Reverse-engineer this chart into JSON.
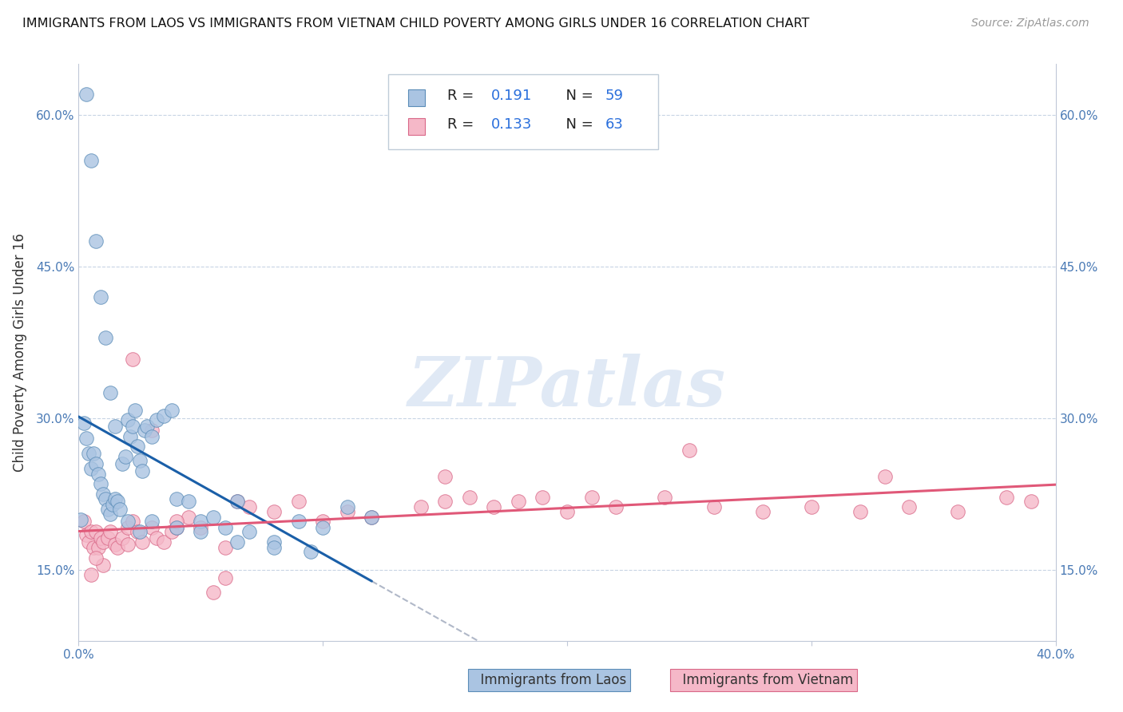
{
  "title": "IMMIGRANTS FROM LAOS VS IMMIGRANTS FROM VIETNAM CHILD POVERTY AMONG GIRLS UNDER 16 CORRELATION CHART",
  "source": "Source: ZipAtlas.com",
  "ylabel": "Child Poverty Among Girls Under 16",
  "xlim": [
    0.0,
    0.4
  ],
  "ylim": [
    0.08,
    0.65
  ],
  "yticks": [
    0.15,
    0.3,
    0.45,
    0.6
  ],
  "yticklabels": [
    "15.0%",
    "30.0%",
    "45.0%",
    "60.0%"
  ],
  "xtick_left": "0.0%",
  "xtick_right": "40.0%",
  "laos_R": 0.191,
  "laos_N": 59,
  "vietnam_R": 0.133,
  "vietnam_N": 63,
  "laos_color": "#aac4e2",
  "laos_edge": "#5b8db8",
  "vietnam_color": "#f5b8c8",
  "vietnam_edge": "#d96888",
  "trend_laos_color": "#1a5fa8",
  "trend_vietnam_color": "#e05878",
  "dashed_line_color": "#b0b8c8",
  "watermark": "ZIPatlas",
  "background_color": "#ffffff",
  "grid_color": "#c8d4e4",
  "laos_x": [
    0.001,
    0.002,
    0.003,
    0.004,
    0.005,
    0.006,
    0.007,
    0.008,
    0.009,
    0.01,
    0.011,
    0.012,
    0.013,
    0.014,
    0.015,
    0.016,
    0.017,
    0.018,
    0.019,
    0.02,
    0.021,
    0.022,
    0.023,
    0.024,
    0.025,
    0.026,
    0.027,
    0.028,
    0.03,
    0.032,
    0.035,
    0.038,
    0.04,
    0.045,
    0.05,
    0.055,
    0.06,
    0.065,
    0.07,
    0.08,
    0.09,
    0.1,
    0.11,
    0.12,
    0.003,
    0.005,
    0.007,
    0.009,
    0.011,
    0.013,
    0.015,
    0.02,
    0.025,
    0.03,
    0.04,
    0.05,
    0.065,
    0.08,
    0.095
  ],
  "laos_y": [
    0.2,
    0.295,
    0.28,
    0.265,
    0.25,
    0.265,
    0.255,
    0.245,
    0.235,
    0.225,
    0.22,
    0.21,
    0.205,
    0.215,
    0.22,
    0.218,
    0.21,
    0.255,
    0.262,
    0.298,
    0.282,
    0.292,
    0.308,
    0.272,
    0.258,
    0.248,
    0.288,
    0.292,
    0.282,
    0.298,
    0.302,
    0.308,
    0.22,
    0.218,
    0.198,
    0.202,
    0.192,
    0.218,
    0.188,
    0.178,
    0.198,
    0.192,
    0.212,
    0.202,
    0.62,
    0.555,
    0.475,
    0.42,
    0.38,
    0.325,
    0.292,
    0.198,
    0.188,
    0.198,
    0.192,
    0.188,
    0.178,
    0.172,
    0.168
  ],
  "vietnam_x": [
    0.002,
    0.003,
    0.004,
    0.005,
    0.006,
    0.007,
    0.008,
    0.009,
    0.01,
    0.012,
    0.013,
    0.015,
    0.016,
    0.018,
    0.02,
    0.022,
    0.024,
    0.026,
    0.03,
    0.032,
    0.035,
    0.038,
    0.04,
    0.045,
    0.05,
    0.055,
    0.06,
    0.065,
    0.07,
    0.08,
    0.09,
    0.1,
    0.11,
    0.12,
    0.14,
    0.15,
    0.16,
    0.17,
    0.18,
    0.19,
    0.2,
    0.21,
    0.22,
    0.24,
    0.26,
    0.28,
    0.3,
    0.32,
    0.34,
    0.36,
    0.38,
    0.39,
    0.022,
    0.03,
    0.04,
    0.06,
    0.15,
    0.25,
    0.33,
    0.02,
    0.01,
    0.007,
    0.005
  ],
  "vietnam_y": [
    0.198,
    0.185,
    0.178,
    0.188,
    0.172,
    0.188,
    0.172,
    0.182,
    0.178,
    0.182,
    0.188,
    0.175,
    0.172,
    0.182,
    0.192,
    0.198,
    0.188,
    0.178,
    0.192,
    0.182,
    0.178,
    0.188,
    0.192,
    0.202,
    0.192,
    0.128,
    0.142,
    0.218,
    0.212,
    0.208,
    0.218,
    0.198,
    0.208,
    0.202,
    0.212,
    0.218,
    0.222,
    0.212,
    0.218,
    0.222,
    0.208,
    0.222,
    0.212,
    0.222,
    0.212,
    0.208,
    0.212,
    0.208,
    0.212,
    0.208,
    0.222,
    0.218,
    0.358,
    0.288,
    0.198,
    0.172,
    0.242,
    0.268,
    0.242,
    0.175,
    0.155,
    0.162,
    0.145
  ]
}
